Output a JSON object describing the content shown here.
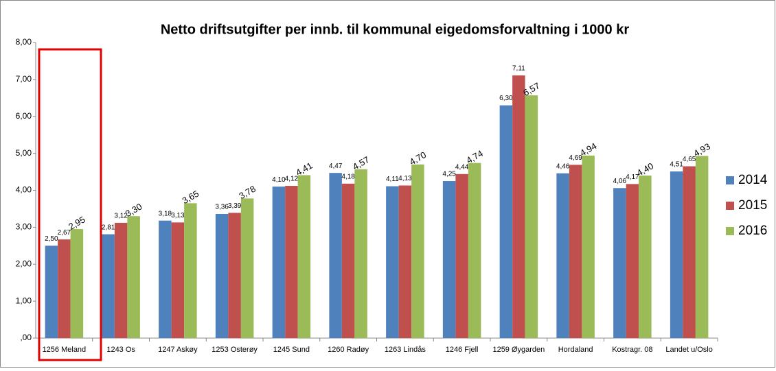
{
  "chart_data": {
    "type": "bar",
    "title": "Netto driftsutgifter per innb. til kommunal eigedomsforvaltning i 1000 kr",
    "categories": [
      "1256 Meland",
      "1243 Os",
      "1247 Askøy",
      "1253 Osterøy",
      "1245 Sund",
      "1260 Radøy",
      "1263 Lindås",
      "1246 Fjell",
      "1259 Øygarden",
      "Hordaland",
      "Kostragr. 08",
      "Landet u/Oslo"
    ],
    "series": [
      {
        "name": "2014",
        "color": "#4f81bd",
        "values": [
          2.5,
          2.81,
          3.18,
          3.36,
          4.1,
          4.47,
          4.11,
          4.25,
          6.3,
          4.46,
          4.06,
          4.51
        ],
        "value_labels": [
          "2,50",
          "2,81",
          "3,18",
          "3,36",
          "4,10",
          "4,47",
          "4,11",
          "4,25",
          "6,30",
          "4,46",
          "4,06",
          "4,51"
        ]
      },
      {
        "name": "2015",
        "color": "#c0504d",
        "values": [
          2.67,
          3.12,
          3.13,
          3.39,
          4.12,
          4.18,
          4.13,
          4.44,
          7.11,
          4.69,
          4.17,
          4.65
        ],
        "value_labels": [
          "2,67",
          "3,12",
          "3,13",
          "3,39",
          "4,12",
          "4,18",
          "4,13",
          "4,44",
          "7,11",
          "4,69",
          "4,17",
          "4,65"
        ]
      },
      {
        "name": "2016",
        "color": "#9bbb59",
        "values": [
          2.95,
          3.3,
          3.65,
          3.78,
          4.41,
          4.57,
          4.7,
          4.74,
          6.57,
          4.94,
          4.4,
          4.93
        ],
        "value_labels": [
          "2,95",
          "3,30",
          "3,65",
          "3,78",
          "4,41",
          "4,57",
          "4,70",
          "4,74",
          "6,57",
          "4,94",
          "4,40",
          "4,93"
        ]
      }
    ],
    "ylim": [
      0,
      8
    ],
    "yticks": [
      {
        "value": 0,
        "label": ",00"
      },
      {
        "value": 1,
        "label": "1,00"
      },
      {
        "value": 2,
        "label": "2,00"
      },
      {
        "value": 3,
        "label": "3,00"
      },
      {
        "value": 4,
        "label": "4,00"
      },
      {
        "value": 5,
        "label": "5,00"
      },
      {
        "value": 6,
        "label": "6,00"
      },
      {
        "value": 7,
        "label": "7,00"
      },
      {
        "value": 8,
        "label": "8,00"
      }
    ],
    "legend": "right"
  }
}
